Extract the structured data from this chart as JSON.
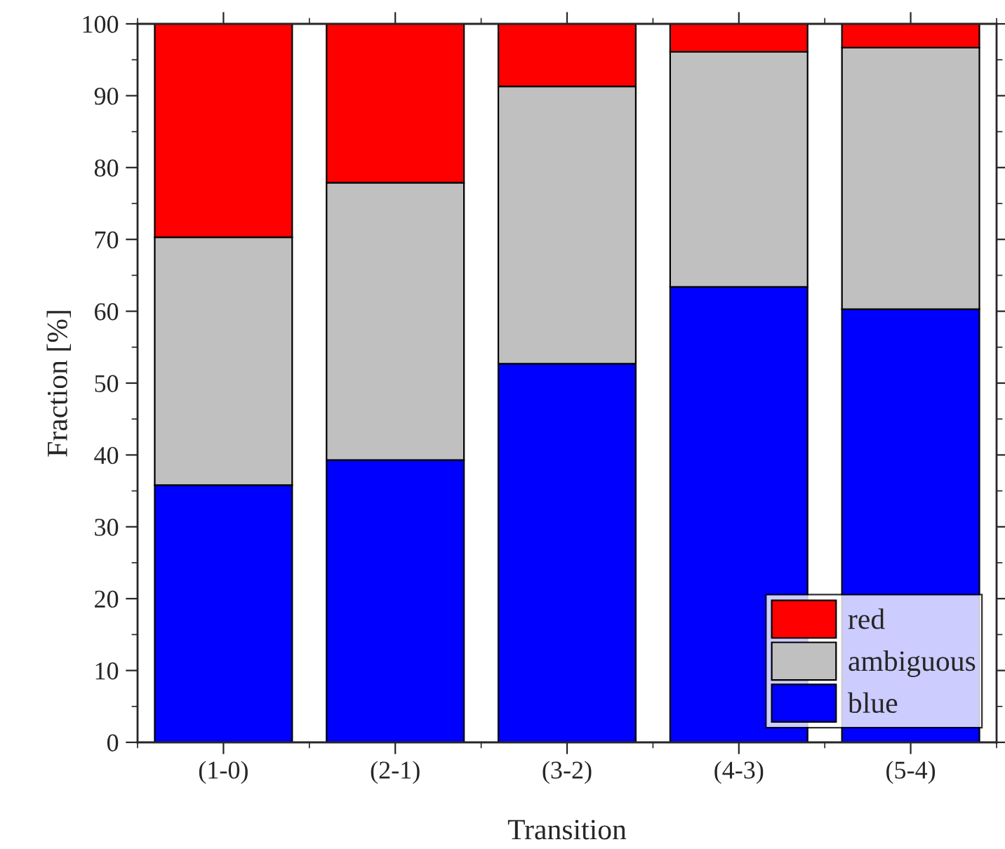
{
  "chart_data": {
    "type": "bar",
    "stacked": true,
    "xlabel": "Transition",
    "ylabel": "Fraction [%]",
    "categories": [
      "(1-0)",
      "(2-1)",
      "(3-2)",
      "(4-3)",
      "(5-4)"
    ],
    "series": [
      {
        "name": "blue",
        "color": "#0000ff",
        "values": [
          35.8,
          39.3,
          52.7,
          63.4,
          60.3
        ]
      },
      {
        "name": "ambiguous",
        "color": "#c0c0c0",
        "values": [
          34.5,
          38.6,
          38.6,
          32.7,
          36.4
        ]
      },
      {
        "name": "red",
        "color": "#ff0000",
        "values": [
          29.7,
          22.1,
          8.7,
          3.9,
          3.3
        ]
      }
    ],
    "ylim": [
      0,
      100
    ],
    "yticks": [
      0,
      10,
      20,
      30,
      40,
      50,
      60,
      70,
      80,
      90,
      100
    ],
    "legend": "bottom right",
    "grid": false
  }
}
